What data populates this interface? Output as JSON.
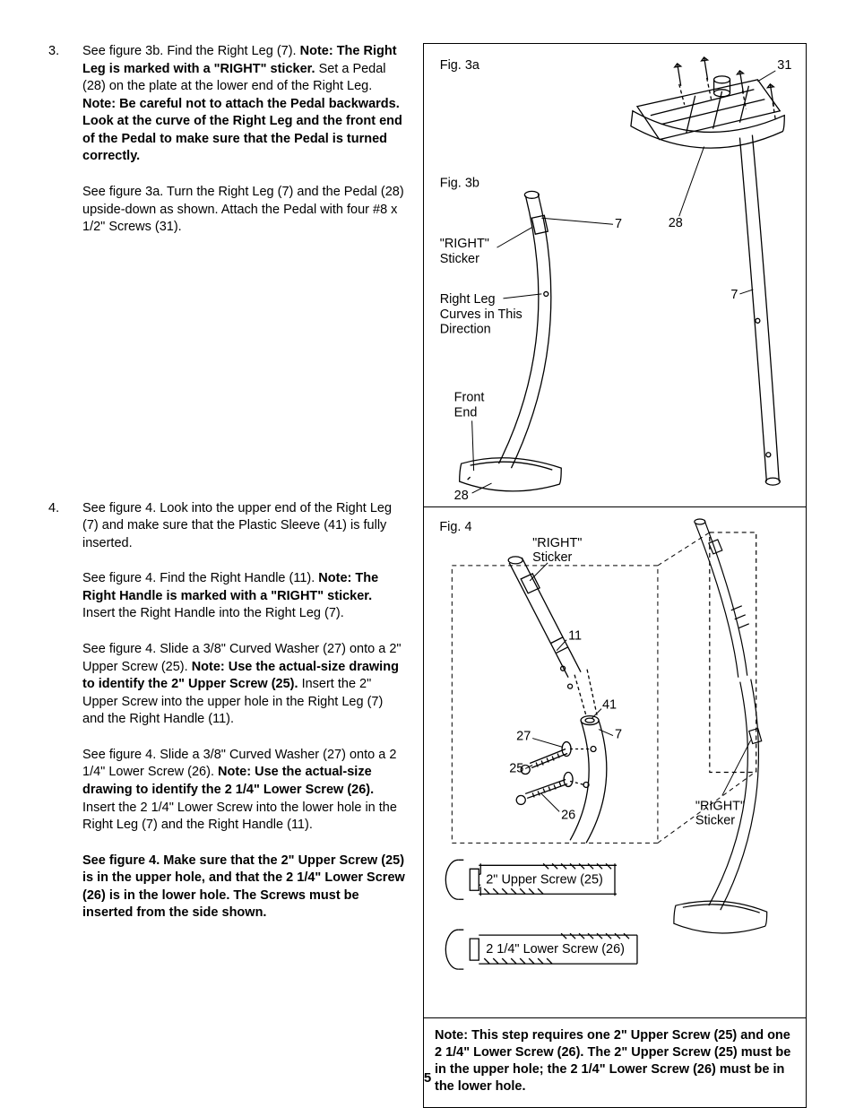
{
  "page_number": "5",
  "steps": [
    {
      "num": "3.",
      "paragraphs": [
        [
          {
            "t": "See figure 3b. Find the Right Leg (7). ",
            "b": false
          },
          {
            "t": "Note: The Right Leg is marked with a \"RIGHT\" sticker. ",
            "b": true
          },
          {
            "t": "Set a Pedal (28) on the plate at the lower end of the Right Leg. ",
            "b": false
          },
          {
            "t": "Note: Be careful not to attach the Pedal backwards. Look at the curve of the Right Leg and the front end of the Pedal to make sure that the Pedal is turned correctly.",
            "b": true
          }
        ],
        [
          {
            "t": "See figure 3a. Turn the Right Leg (7) and the Pedal (28) upside-down as shown. Attach the Pedal with four #8 x 1/2\" Screws (31).",
            "b": false
          }
        ]
      ],
      "space_after": 270
    },
    {
      "num": "4.",
      "paragraphs": [
        [
          {
            "t": "See figure 4. Look into the upper end of the Right Leg (7) and make sure that the Plastic Sleeve (41) is fully inserted.",
            "b": false
          }
        ],
        [
          {
            "t": "See figure 4. Find the Right Handle (11). ",
            "b": false
          },
          {
            "t": "Note: The Right Handle is marked with a \"RIGHT\" sticker. ",
            "b": true
          },
          {
            "t": "Insert the Right Handle into the Right Leg (7).",
            "b": false
          }
        ],
        [
          {
            "t": "See figure 4. Slide a 3/8\" Curved Washer (27) onto a 2\" Upper Screw (25). ",
            "b": false
          },
          {
            "t": "Note: Use the actual-size drawing to identify the 2\" Upper Screw (25). ",
            "b": true
          },
          {
            "t": "Insert the 2\" Upper Screw into the upper hole in the Right Leg (7) and the Right Handle (11).",
            "b": false
          }
        ],
        [
          {
            "t": "See figure 4. Slide a 3/8\" Curved Washer (27) onto a 2 1/4\" Lower Screw (26). ",
            "b": false
          },
          {
            "t": "Note: Use the actual-size drawing to identify the 2 1/4\" Lower Screw (26). ",
            "b": true
          },
          {
            "t": "Insert the 2 1/4\" Lower Screw into the lower hole in the Right Leg (7) and the Right Handle (11).",
            "b": false
          }
        ],
        [
          {
            "t": "See figure 4. Make sure that the 2\" Upper Screw (25) is in the upper hole, and that the 2 1/4\" Lower Screw (26) is in the lower hole. The Screws must be inserted from the side shown.",
            "b": true
          }
        ]
      ],
      "space_after": 0
    }
  ],
  "fig3": {
    "label_3a": "Fig. 3a",
    "label_3b": "Fig. 3b",
    "callouts": {
      "c31": "31",
      "c7a": "7",
      "c28a": "28",
      "c7b": "7",
      "c28b": "28",
      "right_sticker": "\"RIGHT\"\nSticker",
      "curves": "Right Leg\nCurves in This\nDirection",
      "front": "Front\nEnd"
    }
  },
  "fig4": {
    "label": "Fig. 4",
    "callouts": {
      "right_sticker_top": "\"RIGHT\"\nSticker",
      "c11": "11",
      "c41": "41",
      "c7": "7",
      "c27": "27",
      "c25": "25",
      "c26": "26",
      "right_sticker_side": "\"RIGHT\"\nSticker",
      "upper_screw": "2\" Upper Screw (25)",
      "lower_screw": "2 1/4\" Lower Screw (26)"
    }
  },
  "note_box": "Note: This step requires one 2\" Upper Screw (25) and one 2 1/4\" Lower Screw (26). The 2\" Upper Screw (25) must be in the upper hole; the 2 1/4\" Lower Screw (26) must be in the lower hole."
}
